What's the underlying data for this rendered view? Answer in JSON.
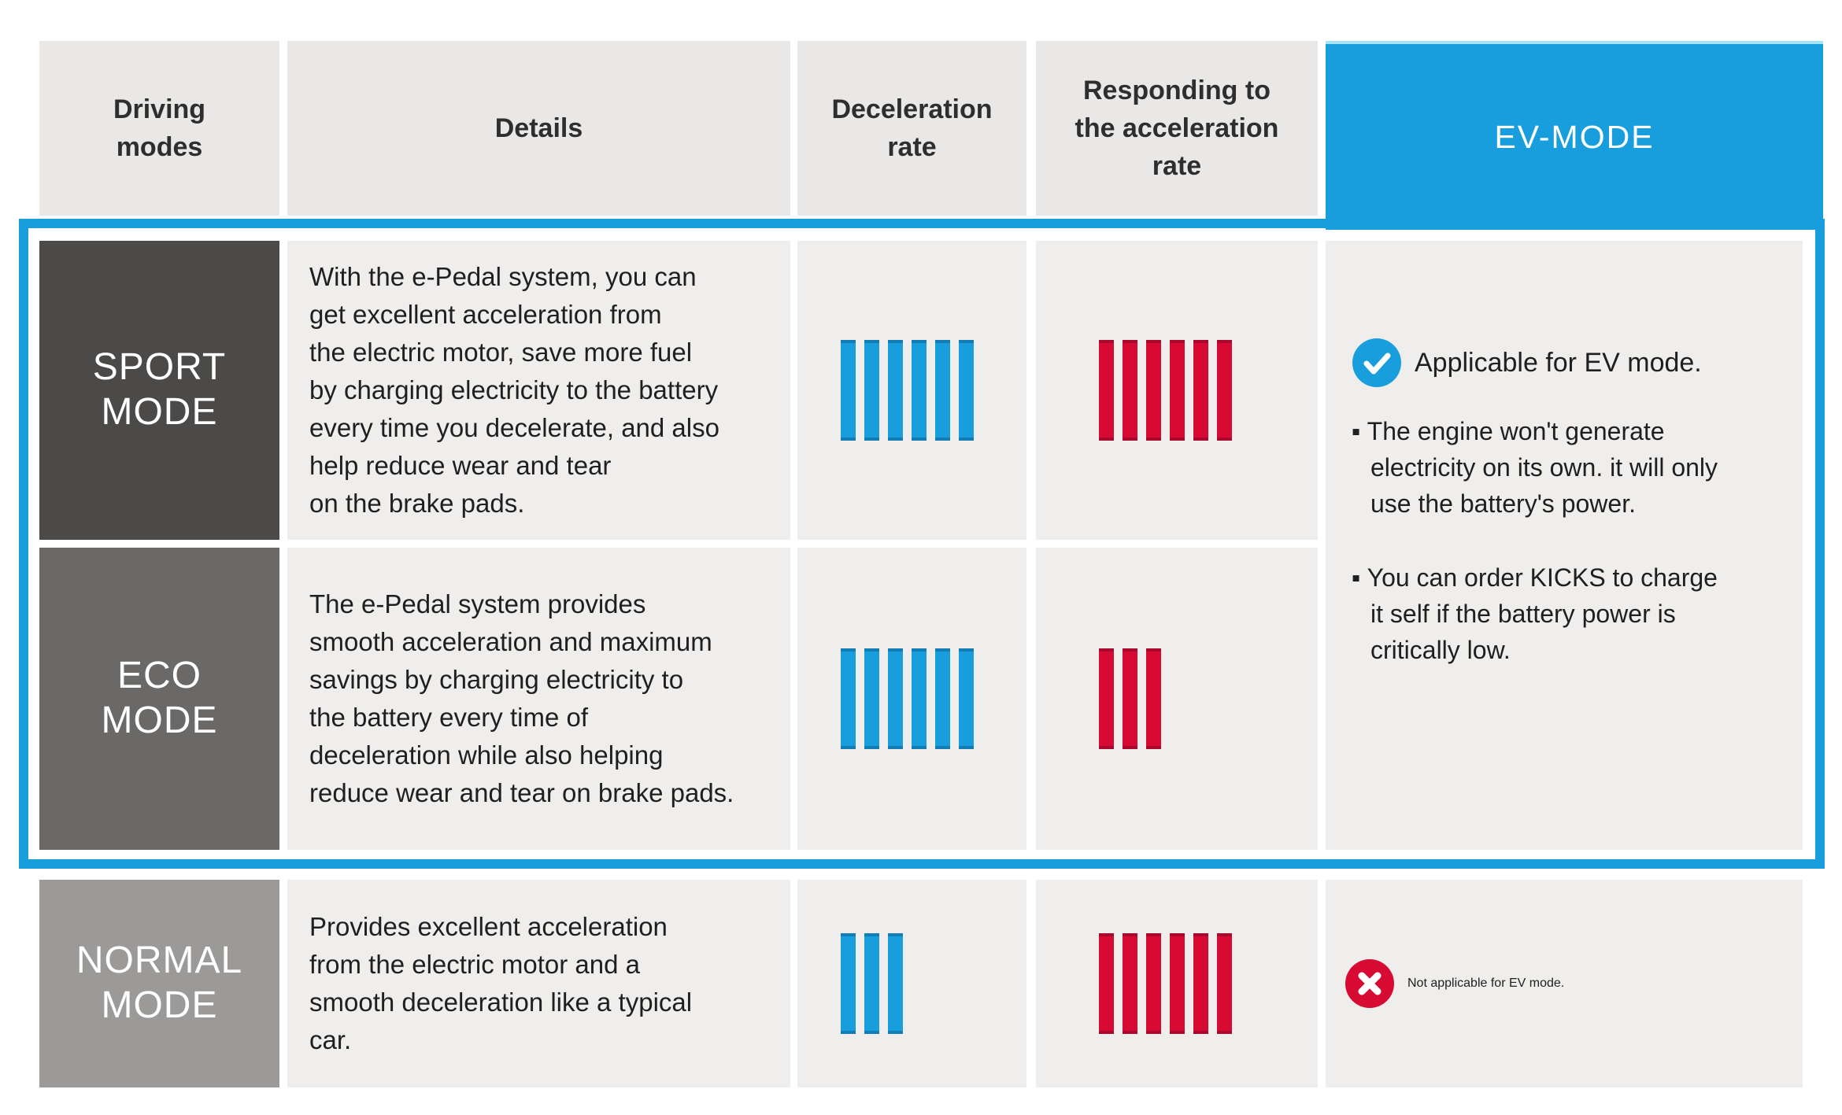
{
  "header": {
    "driving_modes": "Driving\nmodes",
    "details": "Details",
    "deceleration": "Deceleration\nrate",
    "responding": "Responding to\nthe acceleration\nrate",
    "ev_mode": "EV-MODE"
  },
  "rating": {
    "max_bars": 6
  },
  "rows": [
    {
      "label": "SPORT\nMODE",
      "details": "With the e-Pedal system, you can\nget excellent acceleration from\nthe electric motor, save more fuel\nby charging electricity to the battery\nevery time you decelerate, and also\nhelp reduce wear and tear\non the brake pads.",
      "deceleration_bars": 6,
      "acceleration_bars": 6
    },
    {
      "label": "ECO\nMODE",
      "details": "The e-Pedal system provides\nsmooth acceleration and maximum\nsavings by charging electricity to\nthe battery every time of\ndeceleration while also helping\nreduce wear and tear on brake pads.",
      "deceleration_bars": 6,
      "acceleration_bars": 3
    },
    {
      "label": "NORMAL\nMODE",
      "details": "Provides excellent acceleration\nfrom the electric motor and a\nsmooth deceleration like a typical\ncar.",
      "deceleration_bars": 3,
      "acceleration_bars": 6
    }
  ],
  "ev_cell": {
    "applicable_text": "Applicable for EV mode.",
    "notes": [
      "▪ The engine won't generate\nelectricity on its own. it will only\nuse the battery's power.",
      "▪ You can order KICKS to charge\nit self if the battery power is\ncritically low."
    ],
    "not_applicable_text": "Not applicable for EV mode."
  },
  "colors": {
    "accent_blue": "#189edc",
    "accent_red": "#d60a33",
    "sport_gray": "#4b4a48",
    "eco_gray": "#6a6967",
    "normal_gray": "#9b9a98",
    "header_gray": "#e9e8e6",
    "cell_gray": "#efeeec"
  }
}
